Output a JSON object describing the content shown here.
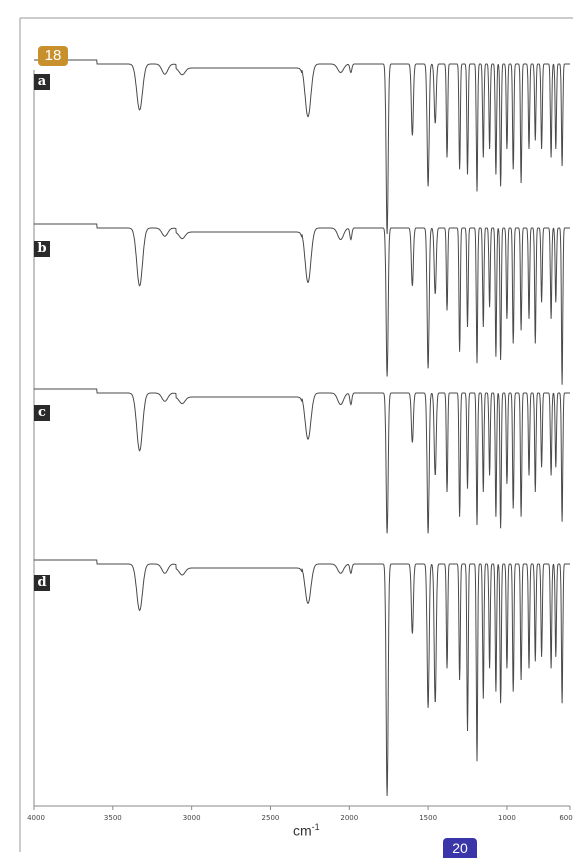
{
  "page_badge": "18",
  "next_badge": "20",
  "chart_data": {
    "type": "line",
    "title": "",
    "xlabel": "cm-1",
    "xlabel_main": "cm",
    "xlabel_sup": "-1",
    "ylabel": "",
    "xlim": [
      4000,
      600
    ],
    "x_reversed": true,
    "x_ticks": [
      4000,
      3500,
      3000,
      2500,
      2000,
      1500,
      1000,
      600
    ],
    "x_tick_labels": [
      "4000",
      "3500",
      "3000",
      "2500",
      "2000",
      "1500",
      "1000",
      "600"
    ],
    "grid": false,
    "legend": "none",
    "series": [
      {
        "label": "a",
        "baseline_transmittance": 0.97,
        "peaks": [
          [
            3330,
            0.27
          ],
          [
            3170,
            0.06
          ],
          [
            3060,
            0.04
          ],
          [
            2262,
            0.31
          ],
          [
            2055,
            0.05
          ],
          [
            1990,
            0.05
          ],
          [
            1760,
            1.0
          ],
          [
            1600,
            0.42
          ],
          [
            1500,
            0.72
          ],
          [
            1455,
            0.35
          ],
          [
            1380,
            0.55
          ],
          [
            1300,
            0.62
          ],
          [
            1250,
            0.65
          ],
          [
            1190,
            0.75
          ],
          [
            1150,
            0.55
          ],
          [
            1110,
            0.5
          ],
          [
            1070,
            0.65
          ],
          [
            1040,
            0.72
          ],
          [
            1000,
            0.5
          ],
          [
            960,
            0.62
          ],
          [
            910,
            0.7
          ],
          [
            860,
            0.5
          ],
          [
            820,
            0.45
          ],
          [
            780,
            0.5
          ],
          [
            720,
            0.55
          ],
          [
            690,
            0.5
          ],
          [
            650,
            0.6
          ]
        ]
      },
      {
        "label": "b",
        "baseline_transmittance": 0.97,
        "peaks": [
          [
            3330,
            0.35
          ],
          [
            3170,
            0.05
          ],
          [
            3060,
            0.04
          ],
          [
            2262,
            0.33
          ],
          [
            2055,
            0.07
          ],
          [
            1990,
            0.07
          ],
          [
            1760,
            0.9
          ],
          [
            1600,
            0.35
          ],
          [
            1500,
            0.85
          ],
          [
            1455,
            0.4
          ],
          [
            1380,
            0.5
          ],
          [
            1300,
            0.75
          ],
          [
            1250,
            0.6
          ],
          [
            1190,
            0.82
          ],
          [
            1150,
            0.6
          ],
          [
            1110,
            0.48
          ],
          [
            1070,
            0.78
          ],
          [
            1040,
            0.8
          ],
          [
            1000,
            0.55
          ],
          [
            960,
            0.7
          ],
          [
            910,
            0.62
          ],
          [
            860,
            0.55
          ],
          [
            820,
            0.7
          ],
          [
            780,
            0.45
          ],
          [
            720,
            0.55
          ],
          [
            690,
            0.45
          ],
          [
            650,
            0.95
          ]
        ]
      },
      {
        "label": "c",
        "baseline_transmittance": 0.97,
        "peaks": [
          [
            3330,
            0.35
          ],
          [
            3170,
            0.05
          ],
          [
            3060,
            0.04
          ],
          [
            2262,
            0.28
          ],
          [
            2055,
            0.07
          ],
          [
            1990,
            0.07
          ],
          [
            1760,
            0.85
          ],
          [
            1600,
            0.3
          ],
          [
            1500,
            0.85
          ],
          [
            1455,
            0.5
          ],
          [
            1380,
            0.6
          ],
          [
            1300,
            0.75
          ],
          [
            1250,
            0.58
          ],
          [
            1190,
            0.8
          ],
          [
            1150,
            0.6
          ],
          [
            1110,
            0.5
          ],
          [
            1070,
            0.75
          ],
          [
            1040,
            0.82
          ],
          [
            1000,
            0.55
          ],
          [
            960,
            0.7
          ],
          [
            910,
            0.75
          ],
          [
            860,
            0.5
          ],
          [
            820,
            0.6
          ],
          [
            780,
            0.45
          ],
          [
            720,
            0.5
          ],
          [
            690,
            0.45
          ],
          [
            650,
            0.78
          ]
        ]
      },
      {
        "label": "d",
        "baseline_transmittance": 0.97,
        "peaks": [
          [
            3330,
            0.2
          ],
          [
            3170,
            0.04
          ],
          [
            3060,
            0.03
          ],
          [
            2262,
            0.17
          ],
          [
            2055,
            0.04
          ],
          [
            1990,
            0.04
          ],
          [
            1760,
            1.0
          ],
          [
            1600,
            0.3
          ],
          [
            1500,
            0.62
          ],
          [
            1455,
            0.6
          ],
          [
            1380,
            0.45
          ],
          [
            1300,
            0.5
          ],
          [
            1250,
            0.72
          ],
          [
            1190,
            0.85
          ],
          [
            1150,
            0.58
          ],
          [
            1110,
            0.45
          ],
          [
            1070,
            0.55
          ],
          [
            1040,
            0.6
          ],
          [
            1000,
            0.45
          ],
          [
            960,
            0.55
          ],
          [
            910,
            0.5
          ],
          [
            860,
            0.45
          ],
          [
            820,
            0.42
          ],
          [
            780,
            0.4
          ],
          [
            720,
            0.45
          ],
          [
            690,
            0.4
          ],
          [
            650,
            0.6
          ]
        ]
      }
    ]
  }
}
